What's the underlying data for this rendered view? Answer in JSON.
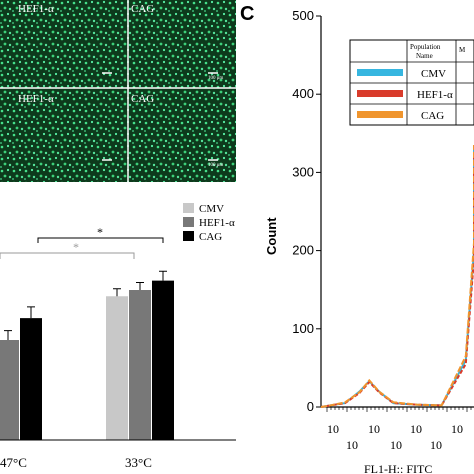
{
  "panel_c_letter": "C",
  "micrographs": {
    "labels": [
      "HEF1-α",
      "CAG",
      "HEF1-α",
      "CAG"
    ],
    "scale_labels": [
      "100 μm",
      "100 μm"
    ]
  },
  "bar_legend": [
    "CMV",
    "HEF1-α",
    "CAG"
  ],
  "bar_colors": [
    "#c8c8c8",
    "#787878",
    "#000000"
  ],
  "histogram_legend": {
    "header": [
      "Population",
      "Name",
      "M"
    ],
    "entries": [
      "CMV",
      "HEF1-α",
      "CAG"
    ],
    "colors": [
      "#36b6e0",
      "#d93b2b",
      "#f0952e"
    ]
  },
  "significance": [
    "*",
    "*"
  ],
  "chart_data": [
    {
      "type": "bar",
      "categories": [
        "47°C",
        "33°C"
      ],
      "series": [
        {
          "name": "CMV",
          "values": [
            null,
            2.3
          ],
          "errors": [
            null,
            0.12
          ]
        },
        {
          "name": "HEF1-α",
          "values": [
            1.6,
            2.4
          ],
          "errors": [
            0.15,
            0.12
          ]
        },
        {
          "name": "CAG",
          "values": [
            1.95,
            2.55
          ],
          "errors": [
            0.18,
            0.15
          ]
        }
      ],
      "xlabel": "",
      "ylabel": "",
      "ylim": [
        0,
        4
      ]
    },
    {
      "type": "line",
      "title": "",
      "xlabel": "FL1-H:: FITC",
      "ylabel": "Count",
      "ylim": [
        0,
        500
      ],
      "yticks": [
        0,
        100,
        200,
        300,
        400,
        500
      ],
      "xtick_labels": [
        "10",
        "10",
        "10",
        "10",
        "10",
        "10",
        "10"
      ],
      "series": [
        {
          "name": "CMV",
          "x": [
            0,
            0.2,
            0.5,
            0.8,
            1.0,
            1.2,
            1.5,
            2.0,
            2.5
          ],
          "y": [
            0,
            2,
            5,
            20,
            33,
            20,
            5,
            3,
            2
          ]
        },
        {
          "name": "HEF1-α",
          "x": [
            0,
            0.2,
            0.5,
            0.8,
            1.0,
            1.2,
            1.5,
            2.0,
            2.5
          ],
          "y": [
            0,
            2,
            5,
            18,
            32,
            19,
            5,
            3,
            2
          ]
        },
        {
          "name": "CAG",
          "x": [
            0,
            0.2,
            0.5,
            0.8,
            1.0,
            1.2,
            1.5,
            2.0,
            2.5
          ],
          "y": [
            0,
            2,
            6,
            19,
            34,
            20,
            6,
            3,
            2
          ]
        }
      ],
      "peak_region": {
        "x": [
          2.5,
          3.0,
          3.3,
          3.5,
          3.6
        ],
        "CMV": [
          2,
          60,
          200,
          300,
          330
        ],
        "HEF1-α": [
          2,
          55,
          190,
          295,
          320
        ],
        "CAG": [
          2,
          65,
          210,
          310,
          335
        ]
      }
    }
  ]
}
